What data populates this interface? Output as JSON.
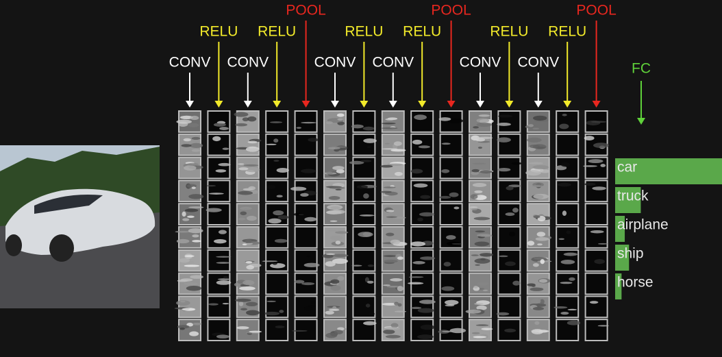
{
  "layers": [
    {
      "label": "CONV",
      "color": "#ffffff"
    },
    {
      "label": "RELU",
      "color": "#f2ea2a"
    },
    {
      "label": "CONV",
      "color": "#ffffff"
    },
    {
      "label": "RELU",
      "color": "#f2ea2a"
    },
    {
      "label": "POOL",
      "color": "#e8271f"
    },
    {
      "label": "CONV",
      "color": "#ffffff"
    },
    {
      "label": "RELU",
      "color": "#f2ea2a"
    },
    {
      "label": "CONV",
      "color": "#ffffff"
    },
    {
      "label": "RELU",
      "color": "#f2ea2a"
    },
    {
      "label": "POOL",
      "color": "#e8271f"
    },
    {
      "label": "CONV",
      "color": "#ffffff"
    },
    {
      "label": "RELU",
      "color": "#f2ea2a"
    },
    {
      "label": "CONV",
      "color": "#ffffff"
    },
    {
      "label": "RELU",
      "color": "#f2ea2a"
    },
    {
      "label": "POOL",
      "color": "#e8271f"
    }
  ],
  "fc": {
    "label": "FC",
    "color": "#5fd13a"
  },
  "outputs": [
    {
      "label": "car",
      "score": 1.0
    },
    {
      "label": "truck",
      "score": 0.24
    },
    {
      "label": "airplane",
      "score": 0.09
    },
    {
      "label": "ship",
      "score": 0.13
    },
    {
      "label": "horse",
      "score": 0.06
    }
  ]
}
